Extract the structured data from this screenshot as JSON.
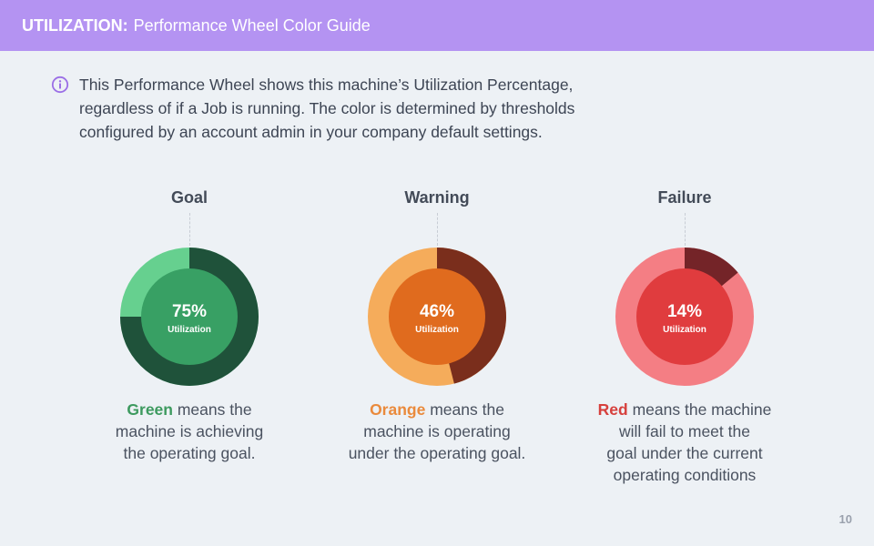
{
  "header": {
    "label": "UTILIZATION:",
    "title": "Performance Wheel Color Guide"
  },
  "info": {
    "icon": "info-icon",
    "text_line1": "This Performance Wheel shows this machine’s Utilization Percentage,",
    "text_line2": "regardless of if a Job is running. The color is determined by thresholds",
    "text_line3": "configured by an account admin in your company default settings."
  },
  "wheels": [
    {
      "title": "Goal",
      "percent": 75,
      "percent_label": "75%",
      "sub_label": "Utilization",
      "colors": {
        "filled": "#1f523a",
        "remaining": "#66d08f",
        "center": "#38a064"
      },
      "desc_highlight": "Green",
      "highlight_color": "#3d9a5f",
      "desc_line1_rest": " means the",
      "desc_line2": "machine is achieving",
      "desc_line3": "the operating goal.",
      "desc_line4": ""
    },
    {
      "title": "Warning",
      "percent": 46,
      "percent_label": "46%",
      "sub_label": "Utilization",
      "colors": {
        "filled": "#7a2e1c",
        "remaining": "#f5ac5b",
        "center": "#e06b1e"
      },
      "desc_highlight": "Orange",
      "highlight_color": "#ea8a3c",
      "desc_line1_rest": " means the",
      "desc_line2": "machine is operating",
      "desc_line3": "under the operating goal.",
      "desc_line4": ""
    },
    {
      "title": "Failure",
      "percent": 14,
      "percent_label": "14%",
      "sub_label": "Utilization",
      "colors": {
        "filled": "#742428",
        "remaining": "#f47e84",
        "center": "#e03c3e"
      },
      "desc_highlight": "Red",
      "highlight_color": "#d6403d",
      "desc_line1_rest": " means the machine",
      "desc_line2": "will fail to meet the",
      "desc_line3": "goal under the current",
      "desc_line4": "operating conditions"
    }
  ],
  "page_number": "10"
}
